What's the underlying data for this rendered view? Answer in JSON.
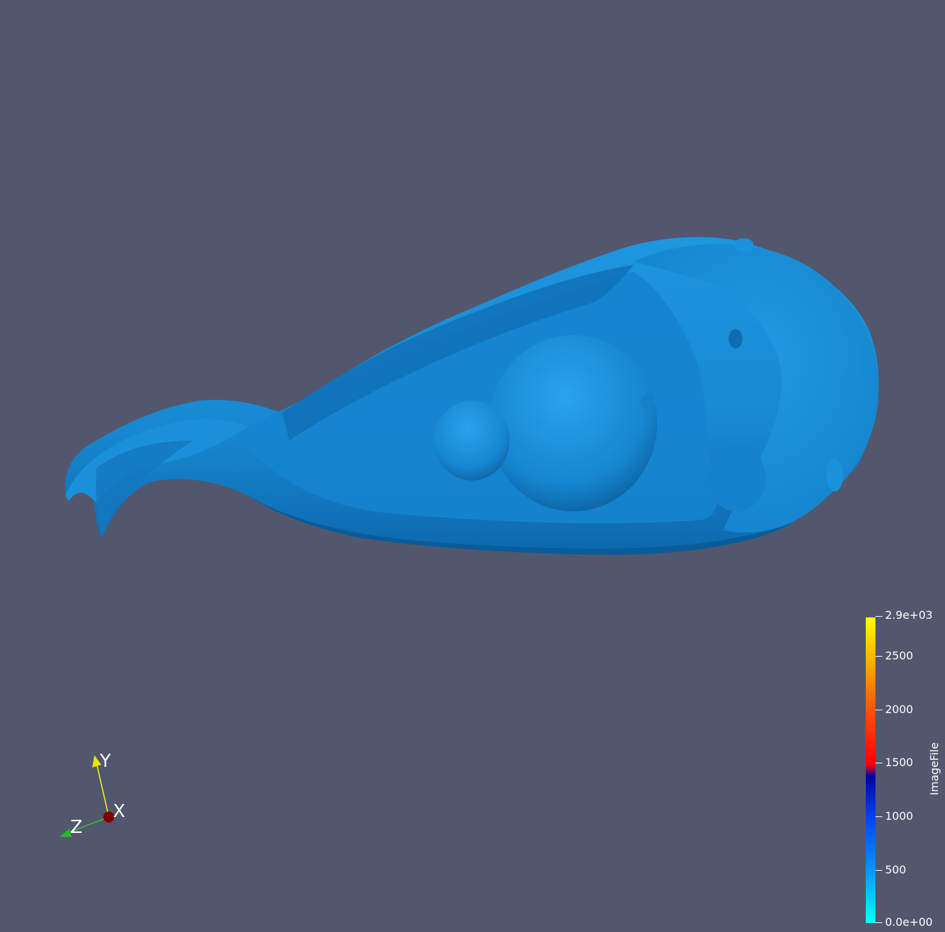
{
  "render_view": {
    "background_color": "#52576e",
    "surface_color": "#1a8fd9",
    "surface_shadow_color": "#0a5c99"
  },
  "orientation_axes": {
    "x_label": "X",
    "y_label": "Y",
    "z_label": "Z",
    "x_color": "#8b0000",
    "y_color": "#ffff00",
    "z_color": "#00cc00"
  },
  "scalar_bar": {
    "title": "ImageFile",
    "colormap": "jet-like",
    "range": [
      0,
      2900
    ],
    "tick_labels": [
      "2.9e+03",
      "2500",
      "2000",
      "1500",
      "1000",
      "500",
      "0.0e+00"
    ]
  }
}
